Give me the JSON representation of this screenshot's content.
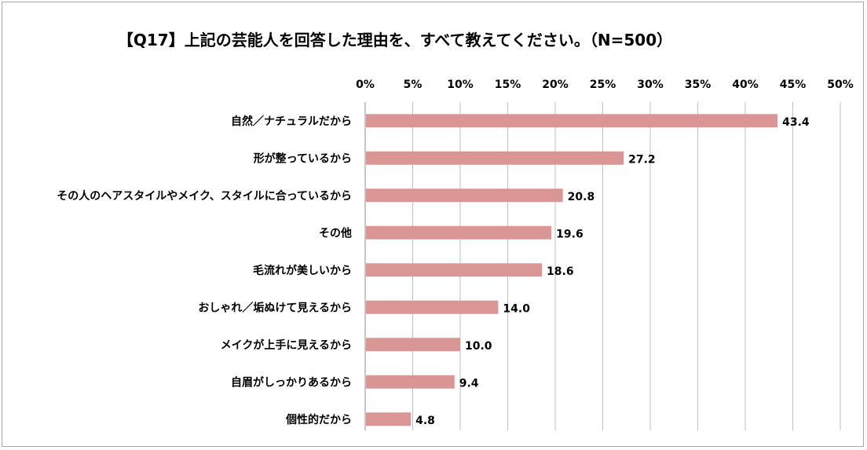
{
  "chart_data": {
    "type": "bar",
    "orientation": "horizontal",
    "title": "【Q17】上記の芸能人を回答した理由を、すべて教えてください。（N=500）",
    "xlim": [
      0,
      50
    ],
    "x_ticks": [
      "0%",
      "5%",
      "10%",
      "15%",
      "20%",
      "25%",
      "30%",
      "35%",
      "40%",
      "45%",
      "50%"
    ],
    "grid": true,
    "categories": [
      "自然／ナチュラルだから",
      "形が整っているから",
      "その人のヘアスタイルやメイク、スタイルに合っているから",
      "その他",
      "毛流れが美しいから",
      "おしゃれ／垢ぬけて見えるから",
      "メイクが上手に見えるから",
      "自眉がしっかりあるから",
      "個性的だから"
    ],
    "values": [
      43.4,
      27.2,
      20.8,
      19.6,
      18.6,
      14.0,
      10.0,
      9.4,
      4.8
    ],
    "value_labels": [
      "43.4",
      "27.2",
      "20.8",
      "19.6",
      "18.6",
      "14.0",
      "10.0",
      "9.4",
      "4.8"
    ],
    "bar_color": "#d99694",
    "grid_color": "#bfbfbf"
  }
}
